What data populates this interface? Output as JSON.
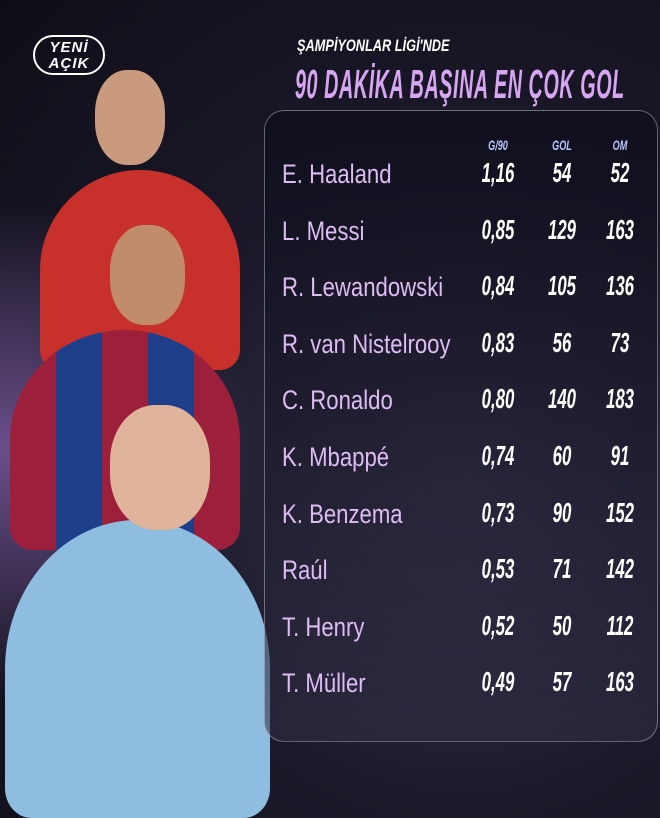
{
  "logo": {
    "line1": "YENİ",
    "line2": "AÇIK"
  },
  "header": {
    "subtitle": "ŞAMPİYONLAR LİGİ'NDE",
    "title": "90 DAKİKA BAŞINA EN ÇOK GOL"
  },
  "table": {
    "columns": [
      "G/90",
      "GOL",
      "OM"
    ],
    "rows": [
      {
        "name": "E. Haaland",
        "g90": "1,16",
        "gol": "54",
        "om": "52"
      },
      {
        "name": "L. Messi",
        "g90": "0,85",
        "gol": "129",
        "om": "163"
      },
      {
        "name": "R. Lewandowski",
        "g90": "0,84",
        "gol": "105",
        "om": "136"
      },
      {
        "name": "R. van Nistelrooy",
        "g90": "0,83",
        "gol": "56",
        "om": "73"
      },
      {
        "name": "C. Ronaldo",
        "g90": "0,80",
        "gol": "140",
        "om": "183"
      },
      {
        "name": "K. Mbappé",
        "g90": "0,74",
        "gol": "60",
        "om": "91"
      },
      {
        "name": "K. Benzema",
        "g90": "0,73",
        "gol": "90",
        "om": "152"
      },
      {
        "name": "Raúl",
        "g90": "0,53",
        "gol": "71",
        "om": "142"
      },
      {
        "name": "T. Henry",
        "g90": "0,52",
        "gol": "50",
        "om": "112"
      },
      {
        "name": "T. Müller",
        "g90": "0,49",
        "gol": "57",
        "om": "163"
      }
    ]
  },
  "colors": {
    "title": "#d7a6f2",
    "names": "#dcbdf2",
    "headers": "#b8c4ff"
  }
}
